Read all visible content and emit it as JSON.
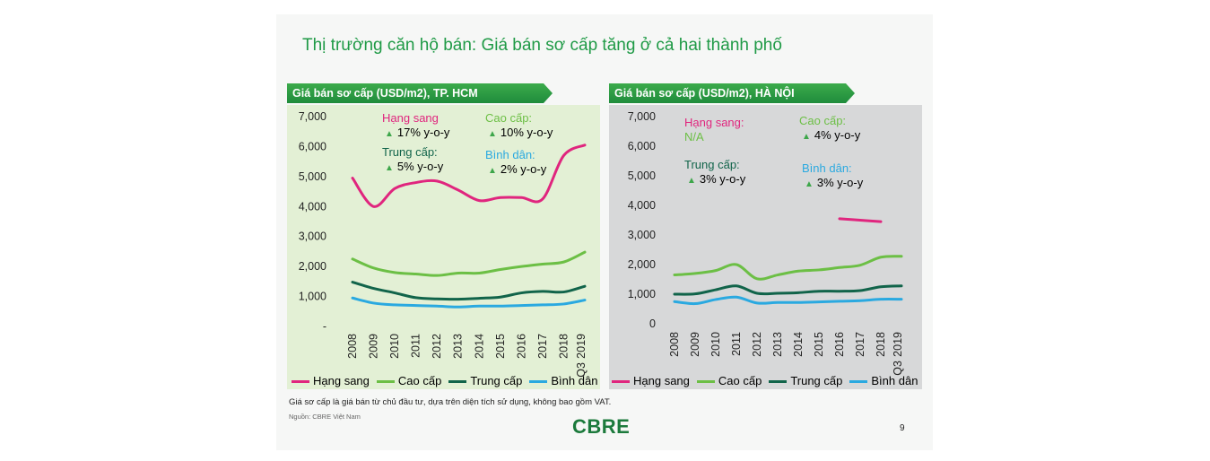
{
  "slide": {
    "title": "Thị trường căn hộ bán: Giá bán sơ cấp tăng ở cả hai thành phố",
    "note": "Giá sơ cấp là giá bán từ chủ đầu tư, dựa trên diện tích sử dụng, không bao gồm VAT.",
    "source": "Nguồn: CBRE Việt Nam",
    "logo": "CBRE",
    "page_number": "9"
  },
  "colors": {
    "hang_sang": "#e0257e",
    "cao_cap": "#6cbf45",
    "trung_cap": "#11644a",
    "binh_dan": "#2aa9e0",
    "tri": "#3da64a"
  },
  "legend": [
    "Hạng sang",
    "Cao cấp",
    "Trung cấp",
    "Bình dân"
  ],
  "hcm": {
    "header": "Giá bán sơ cấp (USD/m2), TP. HCM",
    "ann": {
      "hang_sang_label": "Hạng sang",
      "hang_sang_value": "17% y-o-y",
      "cao_cap_label": "Cao cấp:",
      "cao_cap_value": "10% y-o-y",
      "trung_cap_label": "Trung cấp:",
      "trung_cap_value": "5% y-o-y",
      "binh_dan_label": "Bình dân:",
      "binh_dan_value": "2% y-o-y",
      "tri": "▲"
    }
  },
  "hn": {
    "header": "Giá bán sơ cấp (USD/m2), HÀ NỘI",
    "ann": {
      "hang_sang_label": "Hạng sang:",
      "hang_sang_value": "N/A",
      "cao_cap_label": "Cao cấp:",
      "cao_cap_value": "4% y-o-y",
      "trung_cap_label": "Trung cấp:",
      "trung_cap_value": "3% y-o-y",
      "binh_dan_label": "Bình dân:",
      "binh_dan_value": "3% y-o-y",
      "tri": "▲"
    }
  },
  "chart_data": [
    {
      "type": "line",
      "title": "Giá bán sơ cấp (USD/m2), TP. HCM",
      "categories": [
        "2008",
        "2009",
        "2010",
        "2011",
        "2012",
        "2013",
        "2014",
        "2015",
        "2016",
        "2017",
        "2018",
        "Q3 2019"
      ],
      "yticks": [
        "-",
        "1,000",
        "2,000",
        "3,000",
        "4,000",
        "5,000",
        "6,000",
        "7,000"
      ],
      "ylim": [
        0,
        7000
      ],
      "series": [
        {
          "name": "Hạng sang",
          "values": [
            4950,
            4000,
            4600,
            4800,
            4850,
            4550,
            4200,
            4300,
            4300,
            4250,
            5700,
            6050
          ]
        },
        {
          "name": "Cao cấp",
          "values": [
            2250,
            1950,
            1800,
            1750,
            1700,
            1780,
            1780,
            1900,
            2000,
            2080,
            2150,
            2480
          ]
        },
        {
          "name": "Trung cấp",
          "values": [
            1480,
            1270,
            1120,
            960,
            920,
            910,
            940,
            980,
            1120,
            1170,
            1150,
            1340
          ]
        },
        {
          "name": "Bình dân",
          "values": [
            950,
            780,
            720,
            700,
            680,
            650,
            680,
            680,
            700,
            720,
            750,
            880
          ]
        }
      ]
    },
    {
      "type": "line",
      "title": "Giá bán sơ cấp (USD/m2), HÀ NỘI",
      "categories": [
        "2008",
        "2009",
        "2010",
        "2011",
        "2012",
        "2013",
        "2014",
        "2015",
        "2016",
        "2017",
        "2018",
        "Q3 2019"
      ],
      "yticks": [
        "0",
        "1,000",
        "2,000",
        "3,000",
        "4,000",
        "5,000",
        "6,000",
        "7,000"
      ],
      "ylim": [
        0,
        7000
      ],
      "series": [
        {
          "name": "Hạng sang",
          "values": [
            null,
            null,
            null,
            null,
            null,
            null,
            null,
            null,
            3550,
            3500,
            3450,
            null
          ]
        },
        {
          "name": "Cao cấp",
          "values": [
            1650,
            1700,
            1800,
            2000,
            1520,
            1650,
            1780,
            1820,
            1900,
            1980,
            2250,
            2280
          ]
        },
        {
          "name": "Trung cấp",
          "values": [
            1000,
            1010,
            1150,
            1280,
            1030,
            1030,
            1050,
            1100,
            1100,
            1120,
            1250,
            1280
          ]
        },
        {
          "name": "Bình dân",
          "values": [
            750,
            680,
            820,
            900,
            700,
            720,
            720,
            740,
            760,
            780,
            830,
            830
          ]
        }
      ]
    }
  ]
}
